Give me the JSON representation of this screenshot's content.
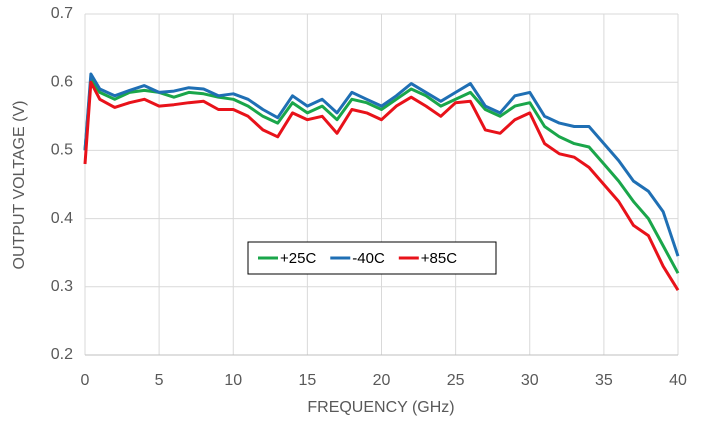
{
  "chart_data": {
    "type": "line",
    "x_label": "FREQUENCY (GHz)",
    "y_label": "OUTPUT VOLTAGE (V)",
    "x": [
      0,
      0.4,
      1,
      2,
      3,
      4,
      5,
      6,
      7,
      8,
      9,
      10,
      11,
      12,
      13,
      14,
      15,
      16,
      17,
      18,
      19,
      20,
      21,
      22,
      23,
      24,
      25,
      26,
      27,
      28,
      29,
      30,
      31,
      32,
      33,
      34,
      35,
      36,
      37,
      38,
      39,
      40
    ],
    "series": [
      {
        "name": "+25C",
        "color": "#1aa64a",
        "values": [
          0.5,
          0.605,
          0.585,
          0.575,
          0.585,
          0.588,
          0.585,
          0.578,
          0.585,
          0.583,
          0.578,
          0.575,
          0.565,
          0.55,
          0.54,
          0.57,
          0.555,
          0.565,
          0.545,
          0.575,
          0.57,
          0.56,
          0.575,
          0.59,
          0.58,
          0.565,
          0.575,
          0.585,
          0.56,
          0.55,
          0.565,
          0.57,
          0.535,
          0.52,
          0.51,
          0.505,
          0.48,
          0.455,
          0.425,
          0.4,
          0.36,
          0.32
        ]
      },
      {
        "name": "-40C",
        "color": "#1f6fb4",
        "values": [
          0.5,
          0.612,
          0.59,
          0.58,
          0.588,
          0.595,
          0.585,
          0.587,
          0.592,
          0.59,
          0.58,
          0.583,
          0.575,
          0.56,
          0.548,
          0.58,
          0.565,
          0.575,
          0.555,
          0.585,
          0.575,
          0.565,
          0.58,
          0.598,
          0.585,
          0.572,
          0.585,
          0.598,
          0.565,
          0.555,
          0.58,
          0.585,
          0.55,
          0.54,
          0.535,
          0.535,
          0.51,
          0.485,
          0.455,
          0.44,
          0.41,
          0.345
        ]
      },
      {
        "name": "+85C",
        "color": "#e8121a",
        "values": [
          0.48,
          0.6,
          0.575,
          0.563,
          0.57,
          0.575,
          0.565,
          0.567,
          0.57,
          0.572,
          0.56,
          0.56,
          0.55,
          0.53,
          0.52,
          0.555,
          0.545,
          0.55,
          0.525,
          0.56,
          0.555,
          0.545,
          0.565,
          0.578,
          0.565,
          0.55,
          0.57,
          0.572,
          0.53,
          0.525,
          0.545,
          0.555,
          0.51,
          0.495,
          0.49,
          0.475,
          0.45,
          0.425,
          0.39,
          0.375,
          0.33,
          0.295
        ]
      }
    ],
    "xlim": [
      0,
      40
    ],
    "xticks": [
      0,
      5,
      10,
      15,
      20,
      25,
      30,
      35,
      40
    ],
    "ylim": [
      0.2,
      0.7
    ],
    "yticks": [
      0.2,
      0.3,
      0.4,
      0.5,
      0.6,
      0.7
    ],
    "grid": true
  }
}
